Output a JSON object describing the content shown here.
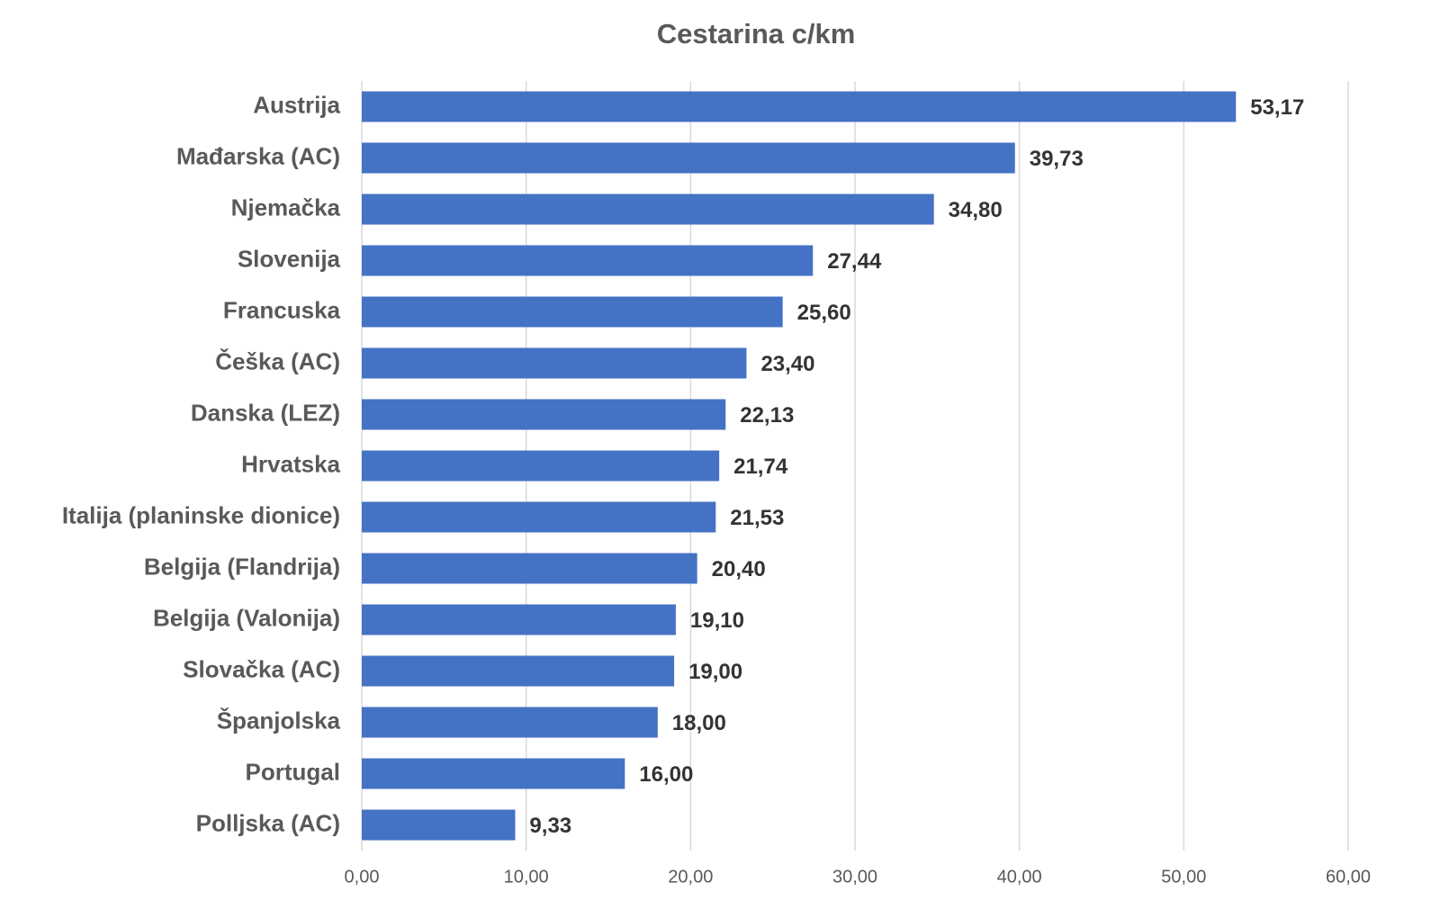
{
  "chart_data": {
    "type": "barh",
    "title": "Cestarina c/km",
    "categories": [
      "Austrija",
      "Mađarska (AC)",
      "Njemačka",
      "Slovenija",
      "Francuska",
      "Češka (AC)",
      "Danska (LEZ)",
      "Hrvatska",
      "Italija (planinske dionice)",
      "Belgija (Flandrija)",
      "Belgija (Valonija)",
      "Slovačka (AC)",
      "Španjolska",
      "Portugal",
      "Polljska (AC)"
    ],
    "values": [
      53.17,
      39.73,
      34.8,
      27.44,
      25.6,
      23.4,
      22.13,
      21.74,
      21.53,
      20.4,
      19.1,
      19.0,
      18.0,
      16.0,
      9.33
    ],
    "value_labels": [
      "53,17",
      "39,73",
      "34,80",
      "27,44",
      "25,60",
      "23,40",
      "22,13",
      "21,74",
      "21,53",
      "20,40",
      "19,10",
      "19,00",
      "18,00",
      "16,00",
      "9,33"
    ],
    "color": "#4472c4",
    "xlim": [
      0,
      60
    ],
    "xticks": [
      {
        "value": 0,
        "label": "0,00"
      },
      {
        "value": 10,
        "label": "10,00"
      },
      {
        "value": 20,
        "label": "20,00"
      },
      {
        "value": 30,
        "label": "30,00"
      },
      {
        "value": 40,
        "label": "40,00"
      },
      {
        "value": 50,
        "label": "50,00"
      },
      {
        "value": 60,
        "label": "60,00"
      }
    ],
    "grid": true
  }
}
